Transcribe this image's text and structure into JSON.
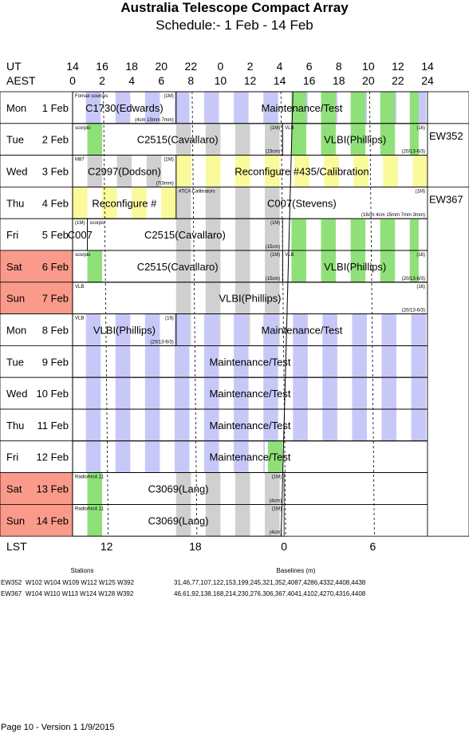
{
  "title": "Australia Telescope Compact Array",
  "subtitle": "Schedule:- 1  Feb - 14 Feb",
  "time_axes": {
    "ut_label": "UT",
    "aest_label": "AEST",
    "ut_ticks": [
      "14",
      "16",
      "18",
      "20",
      "22",
      "0",
      "2",
      "4",
      "6",
      "8",
      "10",
      "12",
      "14"
    ],
    "aest_ticks": [
      "0",
      "2",
      "4",
      "6",
      "8",
      "10",
      "12",
      "14",
      "16",
      "18",
      "20",
      "22",
      "24"
    ],
    "lst_label": "LST",
    "lst_ticks": [
      {
        "label": "12",
        "aest": 2.3
      },
      {
        "label": "18",
        "aest": 8.3
      },
      {
        "label": "0",
        "aest": 14.3
      },
      {
        "label": "6",
        "aest": 20.3
      }
    ]
  },
  "colors": {
    "weekend": "#f99a8a",
    "green": "#90e07a",
    "blue": "#c8c8f8",
    "grey": "#d0d0d0",
    "yellow": "#fafa9a"
  },
  "days": [
    {
      "dow": "Mon",
      "date": " 1 Feb",
      "weekend": false,
      "bands": [
        "sky",
        "green-tail"
      ],
      "blocks": [
        {
          "start": 0,
          "end": 7,
          "label": "C1730(Edwards)",
          "notes": [
            {
              "text": "Fornax sources",
              "pos": "tl"
            },
            {
              "text": "(1M)",
              "pos": "tr"
            },
            {
              "text": "(4cm 15mm 7mm)",
              "pos": "br"
            }
          ]
        },
        {
          "start": 7,
          "end": 24,
          "label": "Maintenance/Test",
          "notes": []
        }
      ]
    },
    {
      "dow": "Tue",
      "date": " 2 Feb",
      "weekend": false,
      "bands": [
        "green-head",
        "grey-mid",
        "green-tail"
      ],
      "blocks": [
        {
          "start": 0,
          "end": 14.2,
          "label": "C2515(Cavallaro)",
          "notes": [
            {
              "text": "scorpio",
              "pos": "tl"
            },
            {
              "text": "(1M)",
              "pos": "tr"
            },
            {
              "text": "(15cm)",
              "pos": "br"
            }
          ]
        },
        {
          "start": 14.2,
          "end": 24,
          "label": "VLBI(Phillips)",
          "notes": [
            {
              "text": "VLB",
              "pos": "tl"
            },
            {
              "text": "(16)",
              "pos": "tr"
            },
            {
              "text": "(20/13-6/3)",
              "pos": "br"
            }
          ]
        }
      ]
    },
    {
      "dow": "Wed",
      "date": " 3 Feb",
      "weekend": false,
      "bands": [
        "grey-head",
        "yellow"
      ],
      "blocks": [
        {
          "start": 0,
          "end": 7,
          "label": "C2997(Dodson)",
          "notes": [
            {
              "text": "M87",
              "pos": "tl"
            },
            {
              "text": "(1M)",
              "pos": "tr"
            },
            {
              "text": "(7/3mm)",
              "pos": "br"
            }
          ]
        },
        {
          "start": 7,
          "end": 24,
          "label": "Reconfigure #435/Calibration",
          "notes": []
        }
      ]
    },
    {
      "dow": "Thu",
      "date": " 4 Feb",
      "weekend": false,
      "bands": [
        "yellow-head",
        "grey-mid"
      ],
      "blocks": [
        {
          "start": 0,
          "end": 7,
          "label": "Reconfigure #",
          "notes": []
        },
        {
          "start": 7,
          "end": 24,
          "label": "C007(Stevens)",
          "notes": [
            {
              "text": "ATCA Calibrators",
              "pos": "tl"
            },
            {
              "text": "(1M)",
              "pos": "tr"
            },
            {
              "text": "(16cm 4cm 15mm 7mm 3mm)",
              "pos": "br"
            }
          ]
        }
      ]
    },
    {
      "dow": "Fri",
      "date": " 5 Feb",
      "weekend": false,
      "bands": [
        "grey-mid",
        "green-tail"
      ],
      "blocks": [
        {
          "start": 0,
          "end": 1,
          "label": "C007",
          "notes": [
            {
              "text": "(1M)",
              "pos": "tl"
            }
          ]
        },
        {
          "start": 1,
          "end": 14.2,
          "label": "C2515(Cavallaro)",
          "notes": [
            {
              "text": "scorpio",
              "pos": "tl"
            },
            {
              "text": "(1M)",
              "pos": "tr"
            },
            {
              "text": "(15cm)",
              "pos": "br"
            }
          ]
        }
      ]
    },
    {
      "dow": "Sat",
      "date": " 6 Feb",
      "weekend": true,
      "bands": [
        "green-head",
        "grey-mid",
        "green-tail"
      ],
      "blocks": [
        {
          "start": 0,
          "end": 14.2,
          "label": "C2515(Cavallaro)",
          "notes": [
            {
              "text": "scorpio",
              "pos": "tl"
            },
            {
              "text": "(1M)",
              "pos": "tr"
            },
            {
              "text": "(15cm)",
              "pos": "br"
            }
          ]
        },
        {
          "start": 14.2,
          "end": 24,
          "label": "VLBI(Phillips)",
          "notes": [
            {
              "text": "VLB",
              "pos": "tl"
            },
            {
              "text": "(16)",
              "pos": "tr"
            },
            {
              "text": "(20/13-6/3)",
              "pos": "br"
            }
          ]
        }
      ]
    },
    {
      "dow": "Sun",
      "date": " 7 Feb",
      "weekend": true,
      "bands": [
        "grey-mid"
      ],
      "blocks": [
        {
          "start": 0,
          "end": 24,
          "label": "VLBI(Phillips)",
          "notes": [
            {
              "text": "VLB",
              "pos": "tl"
            },
            {
              "text": "(16)",
              "pos": "tr"
            },
            {
              "text": "(20/13-6/3)",
              "pos": "br"
            }
          ]
        }
      ]
    },
    {
      "dow": "Mon",
      "date": " 8 Feb",
      "weekend": false,
      "bands": [
        "grey-mid",
        "sky"
      ],
      "blocks": [
        {
          "start": 0,
          "end": 7,
          "label": "VLBI(Phillips)",
          "notes": [
            {
              "text": "VLB",
              "pos": "tl"
            },
            {
              "text": "(16)",
              "pos": "tr"
            },
            {
              "text": "(20/13-6/3)",
              "pos": "br"
            }
          ]
        },
        {
          "start": 7,
          "end": 24,
          "label": "Maintenance/Test",
          "notes": []
        }
      ]
    },
    {
      "dow": "Tue",
      "date": " 9 Feb",
      "weekend": false,
      "bands": [
        "sky"
      ],
      "blocks": [
        {
          "start": 0,
          "end": 24,
          "label": "Maintenance/Test",
          "notes": []
        }
      ]
    },
    {
      "dow": "Wed",
      "date": "10 Feb",
      "weekend": false,
      "bands": [
        "sky"
      ],
      "blocks": [
        {
          "start": 0,
          "end": 24,
          "label": "Maintenance/Test",
          "notes": []
        }
      ]
    },
    {
      "dow": "Thu",
      "date": "11 Feb",
      "weekend": false,
      "bands": [
        "sky"
      ],
      "blocks": [
        {
          "start": 0,
          "end": 24,
          "label": "Maintenance/Test",
          "notes": []
        }
      ]
    },
    {
      "dow": "Fri",
      "date": "12 Feb",
      "weekend": false,
      "bands": [
        "sky-head",
        "green-tail-late"
      ],
      "blocks": [
        {
          "start": 0,
          "end": 24,
          "label": "Maintenance/Test",
          "notes": []
        }
      ]
    },
    {
      "dow": "Sat",
      "date": "13 Feb",
      "weekend": true,
      "bands": [
        "green-head",
        "grey-mid"
      ],
      "blocks": [
        {
          "start": 0,
          "end": 14.3,
          "label": "C3069(Lang)",
          "notes": [
            {
              "text": "RadioArc4 11",
              "pos": "tl"
            },
            {
              "text": "(1M)",
              "pos": "tr"
            },
            {
              "text": "(4cm)",
              "pos": "br"
            }
          ]
        }
      ]
    },
    {
      "dow": "Sun",
      "date": "14 Feb",
      "weekend": true,
      "bands": [
        "green-head",
        "grey-mid"
      ],
      "blocks": [
        {
          "start": 0,
          "end": 14.3,
          "label": "C3069(Lang)",
          "notes": [
            {
              "text": "RadioArc4 11",
              "pos": "tl"
            },
            {
              "text": "(1M)",
              "pos": "tr"
            },
            {
              "text": "(4cm)",
              "pos": "br"
            }
          ]
        }
      ]
    }
  ],
  "configs": [
    {
      "label": "EW352",
      "from_row": 1,
      "to_row": 2
    },
    {
      "label": "EW367",
      "from_row": 3,
      "to_row": 13
    }
  ],
  "stations_table": {
    "stations_header": "Stations",
    "baselines_header": "Baselines (m)",
    "rows": [
      {
        "config": "EW352",
        "stations": "W102 W104 W109 W112 W125 W392",
        "baselines": "31,46,77,107,122,153,199,245,321,352,4087,4286,4332,4408,4438"
      },
      {
        "config": "EW367",
        "stations": "W104 W110 W113 W124 W128 W392",
        "baselines": "46,61,92,138,168,214,230,276,306,367,4041,4102,4270,4316,4408"
      }
    ]
  },
  "footer": "Page 10 - Version 1  1/9/2015"
}
